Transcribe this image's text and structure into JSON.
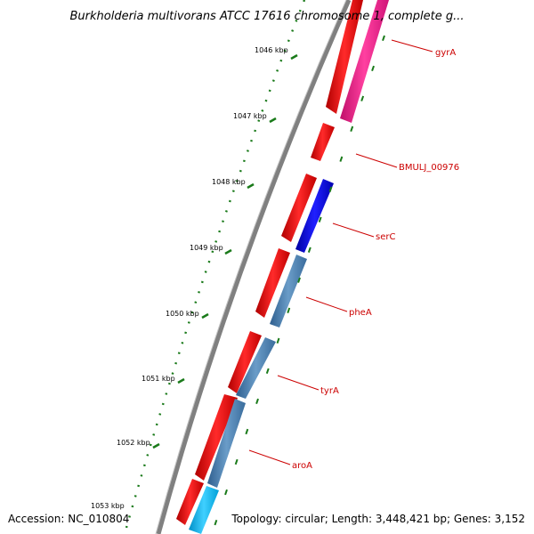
{
  "map": {
    "title": "Burkholderia multivorans ATCC 17616 chromosome 1, complete g...",
    "accession": "Accession: NC_010804",
    "summary": "Topology: circular; Length: 3,448,421 bp; Genes: 3,152",
    "ticks": [
      "1046 kbp",
      "1047 kbp",
      "1048 kbp",
      "1049 kbp",
      "1050 kbp",
      "1051 kbp",
      "1052 kbp",
      "1053 kbp"
    ],
    "genes": [
      {
        "name": "gyrA",
        "strand_color": "#ff1493"
      },
      {
        "name": "BMULJ_00976",
        "strand_color": "#ff0000"
      },
      {
        "name": "serC",
        "strand_color": "#0000dd"
      },
      {
        "name": "pheA",
        "strand_color": "#4682b4"
      },
      {
        "name": "tyrA",
        "strand_color": "#4682b4"
      },
      {
        "name": "aroA",
        "strand_color": "#4682b4"
      }
    ],
    "colors": {
      "backbone": "#808080",
      "cds": "#ff0000",
      "tick_marks": "#1a7a1a",
      "label_lines": "#cc0000"
    }
  }
}
